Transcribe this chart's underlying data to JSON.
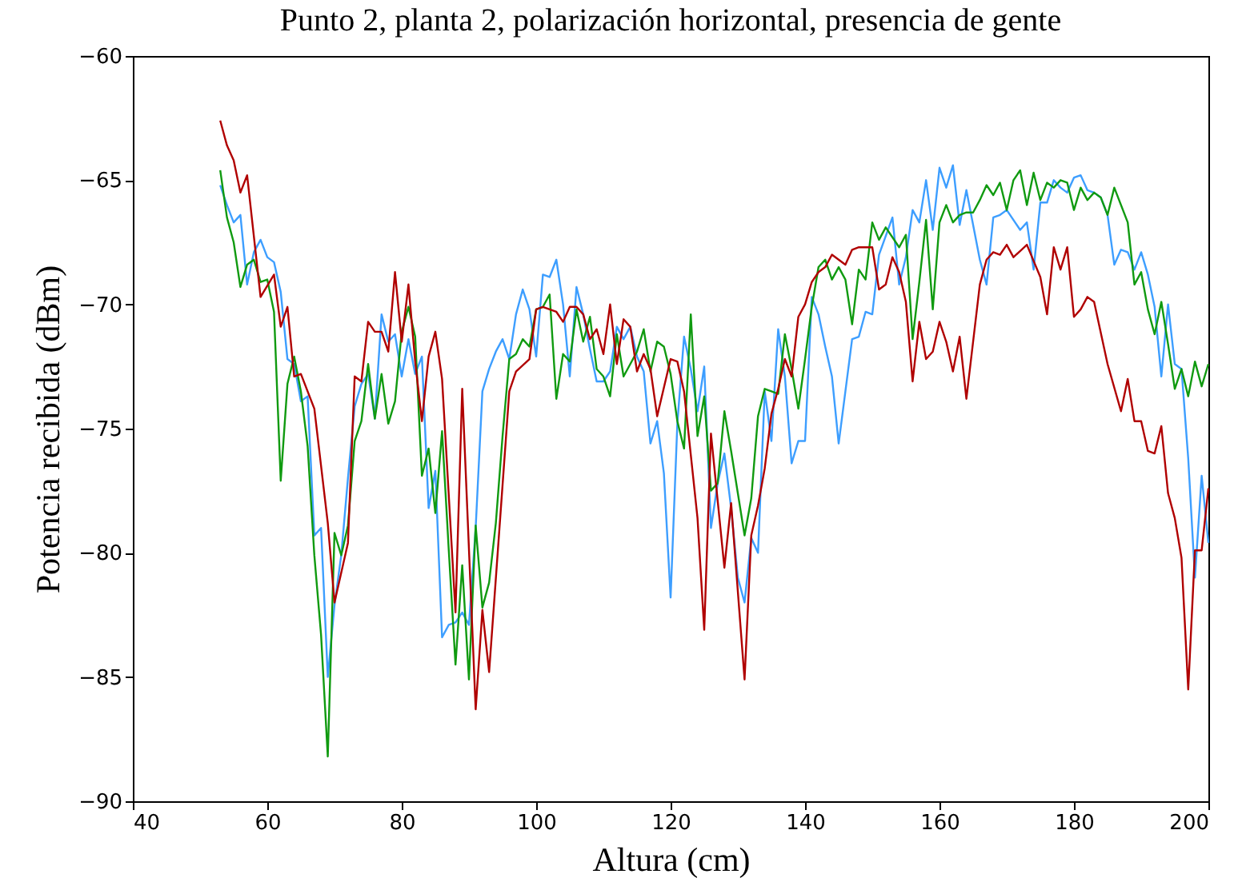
{
  "chart_data": {
    "type": "line",
    "title": "Punto 2, planta 2, polarización horizontal, presencia de gente",
    "xlabel": "Altura (cm)",
    "ylabel": "Potencia recibida (dBm)",
    "xlim": [
      40,
      200
    ],
    "xticks": [
      40,
      60,
      80,
      100,
      120,
      140,
      160,
      180,
      200
    ],
    "ylim": [
      -90,
      -60
    ],
    "yticks": [
      -90,
      -85,
      -80,
      -75,
      -70,
      -65,
      -60
    ],
    "series": [
      {
        "color": "#3d9eff",
        "x": [
          53,
          54,
          55,
          56,
          57,
          58,
          59,
          60,
          61,
          62,
          63,
          64,
          65,
          66,
          67,
          68,
          69,
          70,
          71,
          72,
          73,
          74,
          75,
          76,
          77,
          78,
          79,
          80,
          81,
          82,
          83,
          84,
          85,
          86,
          87,
          88,
          89,
          90,
          91,
          92,
          93,
          94,
          95,
          96,
          97,
          98,
          99,
          100,
          101,
          102,
          103,
          104,
          105,
          106,
          107,
          108,
          109,
          110,
          111,
          112,
          113,
          114,
          115,
          116,
          117,
          118,
          119,
          120,
          121,
          122,
          123,
          124,
          125,
          126,
          127,
          128,
          129,
          130,
          131,
          132,
          133,
          134,
          135,
          136,
          137,
          138,
          139,
          140,
          141,
          142,
          143,
          144,
          145,
          146,
          147,
          148,
          149,
          150,
          151,
          153,
          154,
          155,
          156,
          157,
          158,
          159,
          160,
          161,
          162,
          163,
          164,
          166,
          167,
          168,
          169,
          170,
          172,
          173,
          174,
          175,
          176,
          177,
          178,
          179,
          180,
          181,
          182,
          183,
          184,
          185,
          186,
          187,
          188,
          189,
          190,
          191,
          192,
          193,
          194,
          195,
          196,
          197,
          198,
          199,
          200
        ],
        "values": [
          -65.2,
          -66.0,
          -66.7,
          -66.4,
          -69.2,
          -67.9,
          -67.4,
          -68.1,
          -68.3,
          -69.5,
          -72.2,
          -72.4,
          -73.9,
          -73.7,
          -79.3,
          -79.0,
          -85.0,
          -82.1,
          -80.1,
          -77.0,
          -74.1,
          -73.2,
          -72.8,
          -74.6,
          -70.4,
          -71.5,
          -71.2,
          -72.9,
          -71.4,
          -72.8,
          -72.1,
          -78.2,
          -76.7,
          -83.4,
          -82.9,
          -82.8,
          -82.4,
          -82.9,
          -79.0,
          -73.5,
          -72.6,
          -71.9,
          -71.4,
          -72.2,
          -70.4,
          -69.4,
          -70.2,
          -72.1,
          -68.8,
          -68.9,
          -68.2,
          -70.0,
          -72.9,
          -69.3,
          -70.4,
          -71.8,
          -73.1,
          -73.1,
          -72.7,
          -70.9,
          -71.4,
          -70.9,
          -72.1,
          -72.7,
          -75.6,
          -74.7,
          -76.8,
          -81.8,
          -74.8,
          -71.3,
          -72.6,
          -74.3,
          -72.5,
          -79.0,
          -77.2,
          -76.0,
          -78.2,
          -81.0,
          -82.0,
          -79.4,
          -80.0,
          -73.5,
          -75.5,
          -71.0,
          -72.9,
          -76.4,
          -75.5,
          -75.5,
          -69.7,
          -70.4,
          -71.7,
          -72.9,
          -75.6,
          -73.5,
          -71.4,
          -71.3,
          -70.3,
          -70.4,
          -68.0,
          -66.5,
          -69.2,
          -68.1,
          -66.2,
          -66.7,
          -65.0,
          -67.0,
          -64.5,
          -65.3,
          -64.4,
          -66.8,
          -65.4,
          -68.2,
          -69.2,
          -66.5,
          -66.4,
          -66.2,
          -67.0,
          -66.7,
          -68.6,
          -65.9,
          -65.9,
          -65.0,
          -65.3,
          -65.5,
          -64.9,
          -64.8,
          -65.4,
          -65.5,
          -65.7,
          -66.4,
          -68.4,
          -67.8,
          -67.9,
          -68.6,
          -67.9,
          -68.8,
          -70.1,
          -72.9,
          -70.0,
          -72.4,
          -72.6,
          -76.2,
          -81.0,
          -76.9,
          -79.6
        ]
      },
      {
        "color": "#109a10",
        "x": [
          53,
          54,
          55,
          56,
          57,
          58,
          59,
          60,
          61,
          62,
          63,
          64,
          65,
          66,
          67,
          68,
          69,
          70,
          71,
          72,
          73,
          74,
          75,
          76,
          77,
          78,
          79,
          80,
          81,
          82,
          83,
          84,
          85,
          86,
          87,
          88,
          89,
          90,
          91,
          92,
          93,
          94,
          95,
          96,
          97,
          98,
          99,
          100,
          101,
          102,
          103,
          104,
          105,
          106,
          107,
          108,
          109,
          110,
          111,
          112,
          113,
          114,
          115,
          116,
          117,
          118,
          119,
          120,
          121,
          122,
          123,
          124,
          125,
          126,
          127,
          128,
          129,
          130,
          131,
          132,
          133,
          134,
          135,
          136,
          137,
          138,
          139,
          140,
          141,
          142,
          143,
          144,
          145,
          146,
          147,
          148,
          149,
          150,
          151,
          152,
          153,
          154,
          155,
          156,
          157,
          158,
          159,
          160,
          161,
          162,
          163,
          164,
          165,
          166,
          167,
          168,
          169,
          170,
          171,
          172,
          173,
          174,
          175,
          176,
          177,
          178,
          179,
          180,
          181,
          182,
          183,
          184,
          185,
          186,
          188,
          189,
          190,
          191,
          192,
          193,
          194,
          195,
          196,
          197,
          198,
          199,
          200
        ],
        "values": [
          -64.6,
          -66.5,
          -67.5,
          -69.3,
          -68.4,
          -68.2,
          -69.1,
          -69.0,
          -70.3,
          -77.1,
          -73.2,
          -72.1,
          -73.5,
          -75.7,
          -80.1,
          -83.3,
          -88.2,
          -79.2,
          -80.1,
          -78.9,
          -75.5,
          -74.7,
          -72.4,
          -74.6,
          -72.8,
          -74.8,
          -73.9,
          -71.1,
          -70.1,
          -71.3,
          -76.9,
          -75.8,
          -78.4,
          -75.1,
          -79.9,
          -84.5,
          -80.5,
          -85.1,
          -78.9,
          -82.2,
          -81.2,
          -78.8,
          -75.3,
          -72.2,
          -72.0,
          -71.4,
          -71.7,
          -70.2,
          -70.1,
          -69.6,
          -73.8,
          -72.0,
          -72.3,
          -70.2,
          -71.5,
          -70.5,
          -72.6,
          -72.9,
          -73.7,
          -71.2,
          -72.9,
          -72.4,
          -71.9,
          -71.0,
          -72.7,
          -71.5,
          -71.7,
          -72.8,
          -74.7,
          -75.8,
          -70.4,
          -75.3,
          -73.7,
          -77.5,
          -77.2,
          -74.3,
          -75.9,
          -77.6,
          -79.3,
          -77.8,
          -74.5,
          -73.4,
          -73.5,
          -73.6,
          -71.2,
          -72.6,
          -74.2,
          -72.2,
          -70.1,
          -68.5,
          -68.2,
          -69.0,
          -68.5,
          -69.0,
          -70.8,
          -68.6,
          -69.0,
          -66.7,
          -67.4,
          -66.9,
          -67.3,
          -67.7,
          -67.2,
          -71.4,
          -69.1,
          -66.6,
          -70.2,
          -66.7,
          -66.0,
          -66.7,
          -66.4,
          -66.3,
          -66.3,
          -65.8,
          -65.2,
          -65.6,
          -65.1,
          -66.2,
          -65.0,
          -64.6,
          -66.0,
          -64.7,
          -65.8,
          -65.1,
          -65.3,
          -65.0,
          -65.1,
          -66.2,
          -65.3,
          -65.8,
          -65.5,
          -65.7,
          -66.4,
          -65.3,
          -66.7,
          -69.2,
          -68.7,
          -70.2,
          -71.2,
          -69.9,
          -71.6,
          -73.4,
          -72.6,
          -73.7,
          -72.3,
          -73.3,
          -72.4
        ]
      },
      {
        "color": "#b00000",
        "x": [
          53,
          54,
          55,
          56,
          57,
          59,
          61,
          62,
          63,
          64,
          65,
          67,
          69,
          70,
          72,
          73,
          74,
          75,
          76,
          77,
          78,
          79,
          80,
          81,
          82,
          83,
          84,
          85,
          86,
          88,
          89,
          91,
          92,
          93,
          96,
          97,
          99,
          100,
          101,
          103,
          104,
          105,
          106,
          107,
          108,
          109,
          110,
          111,
          112,
          113,
          114,
          115,
          116,
          117,
          118,
          120,
          121,
          122,
          124,
          125,
          126,
          127,
          128,
          129,
          131,
          132,
          133,
          134,
          135,
          136,
          137,
          138,
          139,
          140,
          141,
          142,
          143,
          144,
          146,
          147,
          148,
          150,
          151,
          152,
          153,
          154,
          155,
          156,
          157,
          158,
          159,
          160,
          161,
          162,
          163,
          164,
          166,
          167,
          168,
          169,
          170,
          171,
          173,
          175,
          176,
          177,
          178,
          179,
          180,
          181,
          182,
          183,
          185,
          187,
          188,
          189,
          190,
          191,
          192,
          193,
          194,
          195,
          196,
          197,
          198,
          199,
          200
        ],
        "values": [
          -62.6,
          -63.6,
          -64.2,
          -65.5,
          -64.8,
          -69.7,
          -68.8,
          -70.9,
          -70.1,
          -72.9,
          -72.8,
          -74.2,
          -78.8,
          -82.0,
          -79.6,
          -72.9,
          -73.1,
          -70.7,
          -71.1,
          -71.1,
          -71.9,
          -68.7,
          -71.5,
          -69.2,
          -72.3,
          -74.7,
          -72.1,
          -71.1,
          -73.0,
          -82.4,
          -73.4,
          -86.3,
          -82.3,
          -84.8,
          -73.5,
          -72.7,
          -72.2,
          -70.2,
          -70.1,
          -70.3,
          -70.7,
          -70.1,
          -70.1,
          -70.4,
          -71.4,
          -71.0,
          -72.0,
          -70.0,
          -72.4,
          -70.6,
          -70.9,
          -72.7,
          -72.0,
          -72.6,
          -74.5,
          -72.2,
          -72.3,
          -73.5,
          -78.6,
          -83.1,
          -75.2,
          -77.9,
          -80.6,
          -78.0,
          -85.1,
          -79.3,
          -78.1,
          -76.6,
          -74.4,
          -73.4,
          -72.2,
          -72.9,
          -70.5,
          -70.0,
          -69.1,
          -68.7,
          -68.5,
          -68.0,
          -68.4,
          -67.8,
          -67.7,
          -67.7,
          -69.4,
          -69.2,
          -68.1,
          -68.7,
          -69.9,
          -73.1,
          -70.7,
          -72.2,
          -71.9,
          -70.7,
          -71.5,
          -72.7,
          -71.3,
          -73.8,
          -69.2,
          -68.2,
          -67.9,
          -68.0,
          -67.6,
          -68.1,
          -67.6,
          -68.9,
          -70.4,
          -67.7,
          -68.6,
          -67.7,
          -70.5,
          -70.2,
          -69.7,
          -69.9,
          -72.4,
          -74.3,
          -73.0,
          -74.7,
          -74.7,
          -75.9,
          -76.0,
          -74.9,
          -77.6,
          -78.6,
          -80.2,
          -85.5,
          -79.9,
          -79.9,
          -77.4
        ]
      }
    ]
  }
}
